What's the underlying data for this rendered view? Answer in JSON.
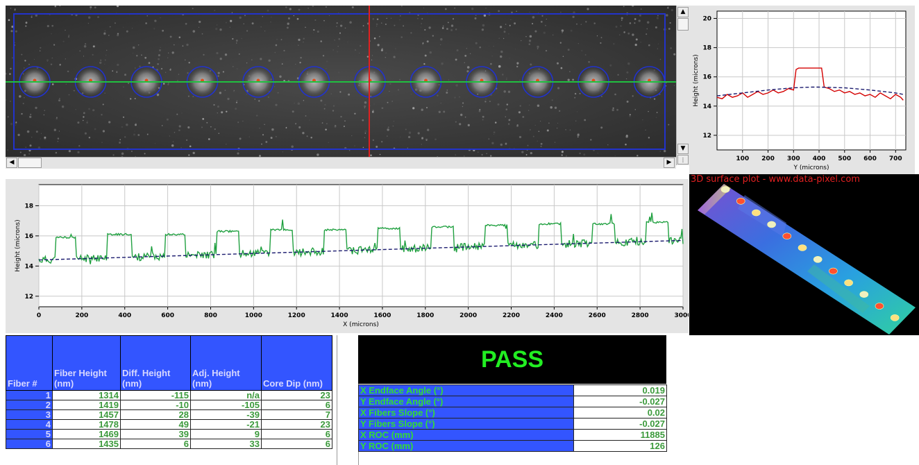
{
  "profile_y_chart": {
    "type": "line",
    "ylabel": "Height (microns)",
    "xlabel": "Y (microns)",
    "xlim": [
      0,
      740
    ],
    "ylim": [
      11,
      20.5
    ],
    "xticks": [
      100,
      200,
      300,
      400,
      500,
      600,
      700
    ],
    "yticks": [
      12,
      14,
      16,
      18,
      20
    ],
    "series": [
      {
        "color": "#d40000",
        "style": "solid",
        "x": [
          0,
          20,
          40,
          60,
          80,
          100,
          120,
          140,
          160,
          180,
          200,
          220,
          240,
          260,
          280,
          300,
          310,
          320,
          340,
          360,
          380,
          400,
          410,
          420,
          440,
          460,
          480,
          500,
          520,
          540,
          560,
          580,
          600,
          620,
          640,
          660,
          680,
          700,
          720,
          730
        ],
        "y": [
          14.6,
          14.5,
          14.8,
          14.6,
          14.7,
          14.9,
          14.6,
          14.8,
          15.0,
          14.8,
          14.9,
          15.1,
          14.9,
          15.0,
          15.2,
          15.1,
          16.5,
          16.6,
          16.6,
          16.6,
          16.6,
          16.6,
          16.6,
          15.3,
          15.2,
          15.0,
          15.1,
          14.9,
          15.0,
          14.8,
          14.9,
          14.7,
          14.8,
          14.6,
          14.9,
          14.7,
          14.5,
          14.8,
          14.6,
          14.4
        ]
      },
      {
        "color": "#1a1a6e",
        "style": "dashed",
        "x": [
          0,
          100,
          200,
          300,
          370,
          400,
          500,
          600,
          700,
          730
        ],
        "y": [
          14.7,
          14.9,
          15.1,
          15.25,
          15.3,
          15.3,
          15.25,
          15.1,
          14.9,
          14.8
        ]
      }
    ]
  },
  "profile_x_chart": {
    "type": "line",
    "ylabel": "Height (microns)",
    "xlabel": "X (microns)",
    "xlim": [
      0,
      3000
    ],
    "ylim": [
      11.3,
      19.4
    ],
    "xticks": [
      0,
      200,
      400,
      600,
      800,
      1000,
      1200,
      1400,
      1600,
      1800,
      2000,
      2200,
      2400,
      2600,
      2800,
      3000
    ],
    "yticks": [
      12,
      14,
      16,
      18
    ],
    "plateaus": [
      [
        80,
        170,
        15.9
      ],
      [
        320,
        430,
        16.1
      ],
      [
        590,
        680,
        16.1
      ],
      [
        830,
        930,
        16.3
      ],
      [
        1080,
        1180,
        16.4
      ],
      [
        1330,
        1430,
        16.4
      ],
      [
        1580,
        1680,
        16.5
      ],
      [
        1830,
        1930,
        16.6
      ],
      [
        2080,
        2180,
        16.7
      ],
      [
        2330,
        2430,
        16.8
      ],
      [
        2580,
        2680,
        16.8
      ],
      [
        2830,
        2930,
        16.9
      ]
    ],
    "baseline": {
      "x": [
        0,
        3000
      ],
      "y": [
        14.4,
        15.7
      ],
      "color": "#1a1a6e",
      "style": "dashed"
    },
    "line_color": "#20a040"
  },
  "surface_plot": {
    "caption": "3D surface plot - www.data-pixel.com"
  },
  "fiber_table": {
    "headers": [
      "Fiber #",
      "Fiber Height (nm)",
      "Diff. Height (nm)",
      "Adj. Height (nm)",
      "Core Dip (nm)"
    ],
    "rows": [
      [
        "1",
        "1314",
        "-115",
        "n/a",
        "23"
      ],
      [
        "2",
        "1419",
        "-10",
        "-105",
        "6"
      ],
      [
        "3",
        "1457",
        "28",
        "-39",
        "7"
      ],
      [
        "4",
        "1478",
        "49",
        "-21",
        "23"
      ],
      [
        "5",
        "1469",
        "39",
        "9",
        "6"
      ],
      [
        "6",
        "1435",
        "6",
        "33",
        "6"
      ]
    ]
  },
  "result": {
    "status": "PASS",
    "metrics": [
      {
        "label": "X Endface Angle (°)",
        "value": "0.019"
      },
      {
        "label": "Y Endface Angle (°)",
        "value": "-0.027"
      },
      {
        "label": "X Fibers Slope (°)",
        "value": "0.02"
      },
      {
        "label": "Y Fibers Slope (°)",
        "value": "-0.027"
      },
      {
        "label": "X ROC (mm)",
        "value": "11885"
      },
      {
        "label": "Y ROC (mm)",
        "value": "126"
      }
    ]
  },
  "scroll": {
    "up_arrow": "▲",
    "down_arrow": "▼",
    "left_arrow": "◀",
    "right_arrow": "▶"
  },
  "colors": {
    "table_header": "#3355ff",
    "pass_text": "#22ee22",
    "cursor_line": "#e02020",
    "fiber_axis": "#20c040",
    "fiber_ring": "#2233cc"
  }
}
